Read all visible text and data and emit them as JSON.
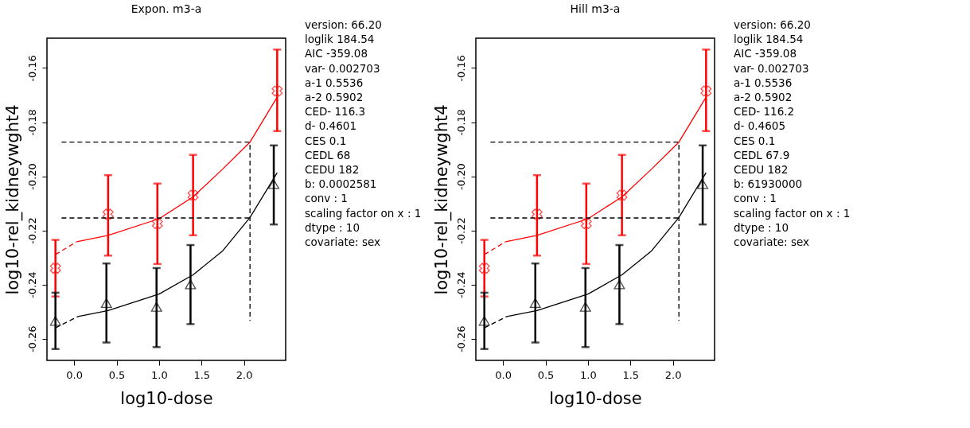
{
  "chart_data": [
    {
      "type": "scatter",
      "title": "Expon. m3-a",
      "xlabel": "log10-dose",
      "ylabel": "log10-rel_kidneywght4",
      "xlim": [
        -0.32,
        2.49
      ],
      "ylim": [
        -0.268,
        -0.149
      ],
      "xticks": [
        {
          "value": 0,
          "label": "0.0"
        },
        {
          "value": 0.5,
          "label": "0.5"
        },
        {
          "value": 1,
          "label": "1.0"
        },
        {
          "value": 1.5,
          "label": "1.5"
        },
        {
          "value": 2,
          "label": "2.0"
        }
      ],
      "yticks": [
        {
          "value": -0.26,
          "label": "-0.26"
        },
        {
          "value": -0.24,
          "label": "-0.24"
        },
        {
          "value": -0.22,
          "label": "-0.22"
        },
        {
          "value": -0.2,
          "label": "-0.20"
        },
        {
          "value": -0.18,
          "label": "-0.18"
        },
        {
          "value": -0.16,
          "label": "-0.16"
        }
      ],
      "grid": false,
      "annotations": [
        "version: 66.20",
        "loglik    184.54",
        "AIC    -359.08",
        "var-    0.002703",
        "a-1    0.5536",
        "a-2    0.5902",
        "CED-    116.3",
        "d-    0.4601",
        "CES    0.1",
        "CEDL    68",
        "CEDU    182",
        "b:  0.0002581",
        "conv :  1",
        "scaling factor on x :  1",
        "dtype :  10",
        "covariate: sex"
      ],
      "series": [
        {
          "type": "scatter",
          "color": "#ff0000",
          "marker": "cross",
          "x": [
            -0.22,
            0.4,
            0.98,
            1.4,
            2.39
          ],
          "values": [
            -0.234,
            -0.214,
            -0.2175,
            -0.207,
            -0.1685
          ],
          "errors": [
            [
              -0.2444,
              -0.2235
            ],
            [
              -0.2293,
              -0.1996
            ],
            [
              -0.2324,
              -0.2027
            ],
            [
              -0.2218,
              -0.1921
            ],
            [
              -0.1833,
              -0.1532
            ]
          ]
        },
        {
          "type": "scatter",
          "color": "#000000",
          "marker": "triangle",
          "x": [
            -0.22,
            0.38,
            0.97,
            1.37,
            2.35
          ],
          "values": [
            -0.2534,
            -0.2468,
            -0.2482,
            -0.2399,
            -0.2029
          ],
          "errors": [
            [
              -0.2638,
              -0.243
            ],
            [
              -0.2614,
              -0.2322
            ],
            [
              -0.2631,
              -0.2339
            ],
            [
              -0.2546,
              -0.2254
            ],
            [
              -0.2178,
              -0.1886
            ]
          ]
        },
        {
          "type": "line",
          "color": "#ff0000",
          "line_style": "dashed",
          "x": [
            -0.22,
            0.03
          ],
          "values": [
            -0.2289,
            -0.2242
          ]
        },
        {
          "type": "line",
          "color": "#ff0000",
          "line_style": "solid",
          "x": [
            0.03,
            0.4,
            1.0,
            1.4,
            1.75,
            2.07,
            2.39
          ],
          "values": [
            -0.2242,
            -0.2218,
            -0.2157,
            -0.2076,
            -0.1973,
            -0.1874,
            -0.1708
          ]
        },
        {
          "type": "line",
          "color": "#000000",
          "line_style": "dashed",
          "x": [
            -0.22,
            0.045
          ],
          "values": [
            -0.256,
            -0.2518
          ]
        },
        {
          "type": "line",
          "color": "#000000",
          "line_style": "solid",
          "x": [
            0.045,
            0.4,
            1.0,
            1.4,
            1.75,
            2.07,
            2.39
          ],
          "values": [
            -0.2518,
            -0.2496,
            -0.2435,
            -0.2364,
            -0.2275,
            -0.2152,
            -0.1987
          ]
        },
        {
          "type": "line",
          "color": "#000000",
          "line_style": "dashed",
          "x": [
            -0.148,
            2.07,
            2.07
          ],
          "values": [
            -0.1874,
            -0.1874,
            -0.2534
          ]
        },
        {
          "type": "line",
          "color": "#000000",
          "line_style": "dashed",
          "x": [
            -0.148,
            2.07
          ],
          "values": [
            -0.2154,
            -0.2154
          ]
        }
      ]
    },
    {
      "type": "scatter",
      "title": "Hill m3-a",
      "xlabel": "log10-dose",
      "ylabel": "log10-rel_kidneywght4",
      "xlim": [
        -0.32,
        2.49
      ],
      "ylim": [
        -0.268,
        -0.149
      ],
      "xticks": [
        {
          "value": 0,
          "label": "0.0"
        },
        {
          "value": 0.5,
          "label": "0.5"
        },
        {
          "value": 1,
          "label": "1.0"
        },
        {
          "value": 1.5,
          "label": "1.5"
        },
        {
          "value": 2,
          "label": "2.0"
        }
      ],
      "yticks": [
        {
          "value": -0.26,
          "label": "-0.26"
        },
        {
          "value": -0.24,
          "label": "-0.24"
        },
        {
          "value": -0.22,
          "label": "-0.22"
        },
        {
          "value": -0.2,
          "label": "-0.20"
        },
        {
          "value": -0.18,
          "label": "-0.18"
        },
        {
          "value": -0.16,
          "label": "-0.16"
        }
      ],
      "grid": false,
      "annotations": [
        "version: 66.20",
        "loglik    184.54",
        "AIC    -359.08",
        "var-    0.002703",
        "a-1    0.5536",
        "a-2    0.5902",
        "CED-    116.2",
        "d-    0.4605",
        "CES    0.1",
        "CEDL    67.9",
        "CEDU    182",
        "b:  61930000",
        "conv :  1",
        "scaling factor on x :  1",
        "dtype :  10",
        "covariate: sex"
      ],
      "series": [
        {
          "type": "scatter",
          "color": "#ff0000",
          "marker": "cross",
          "x": [
            -0.22,
            0.4,
            0.98,
            1.4,
            2.39
          ],
          "values": [
            -0.234,
            -0.214,
            -0.2175,
            -0.207,
            -0.1685
          ],
          "errors": [
            [
              -0.2444,
              -0.2235
            ],
            [
              -0.2293,
              -0.1996
            ],
            [
              -0.2324,
              -0.2027
            ],
            [
              -0.2218,
              -0.1921
            ],
            [
              -0.1833,
              -0.1532
            ]
          ]
        },
        {
          "type": "scatter",
          "color": "#000000",
          "marker": "triangle",
          "x": [
            -0.22,
            0.38,
            0.97,
            1.37,
            2.35
          ],
          "values": [
            -0.2534,
            -0.2468,
            -0.2482,
            -0.2399,
            -0.2029
          ],
          "errors": [
            [
              -0.2638,
              -0.243
            ],
            [
              -0.2614,
              -0.2322
            ],
            [
              -0.2631,
              -0.2339
            ],
            [
              -0.2546,
              -0.2254
            ],
            [
              -0.2178,
              -0.1886
            ]
          ]
        },
        {
          "type": "line",
          "color": "#ff0000",
          "line_style": "dashed",
          "x": [
            -0.22,
            0.03
          ],
          "values": [
            -0.2289,
            -0.2242
          ]
        },
        {
          "type": "line",
          "color": "#ff0000",
          "line_style": "solid",
          "x": [
            0.03,
            0.4,
            1.0,
            1.4,
            1.75,
            2.07,
            2.39
          ],
          "values": [
            -0.2242,
            -0.2218,
            -0.2157,
            -0.2076,
            -0.1973,
            -0.1874,
            -0.1708
          ]
        },
        {
          "type": "line",
          "color": "#000000",
          "line_style": "dashed",
          "x": [
            -0.22,
            0.045
          ],
          "values": [
            -0.256,
            -0.2518
          ]
        },
        {
          "type": "line",
          "color": "#000000",
          "line_style": "solid",
          "x": [
            0.045,
            0.4,
            1.0,
            1.4,
            1.75,
            2.07,
            2.39
          ],
          "values": [
            -0.2518,
            -0.2496,
            -0.2435,
            -0.2364,
            -0.2275,
            -0.2152,
            -0.1987
          ]
        },
        {
          "type": "line",
          "color": "#000000",
          "line_style": "dashed",
          "x": [
            -0.148,
            2.07,
            2.07
          ],
          "values": [
            -0.1874,
            -0.1874,
            -0.2534
          ]
        },
        {
          "type": "line",
          "color": "#000000",
          "line_style": "dashed",
          "x": [
            -0.148,
            2.07
          ],
          "values": [
            -0.2154,
            -0.2154
          ]
        }
      ]
    }
  ]
}
